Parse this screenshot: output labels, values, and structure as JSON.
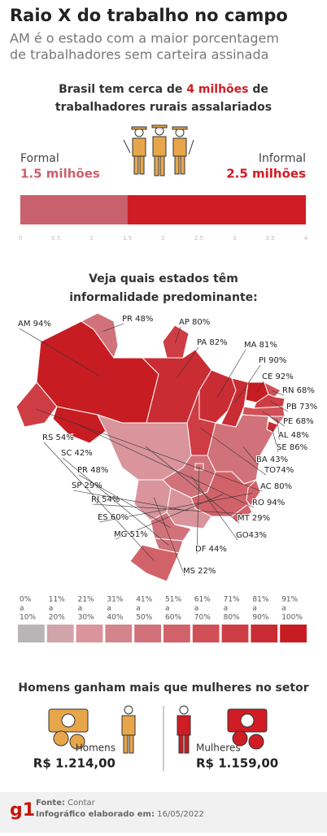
{
  "header": {
    "title": "Raio X do trabalho no campo",
    "subtitle_lines": [
      "AM é o estado com a maior porcentagem",
      "de trabalhadores sem carteira assinada"
    ]
  },
  "chart_data": {
    "type": "bar",
    "orientation": "horizontal",
    "stacked": true,
    "title_lines": [
      [
        "Brasil tem cerca de ",
        "4 milhões",
        " de"
      ],
      [
        "trabalhadores rurais assalariados"
      ]
    ],
    "series": [
      {
        "name": "Formal",
        "color": "#c9616c",
        "values": [
          1.5
        ],
        "value_labels": [
          "1.5 milhões"
        ]
      },
      {
        "name": "Informal",
        "color": "#d01c24",
        "values": [
          2.5
        ],
        "value_labels": [
          "2.5 milhões"
        ]
      }
    ],
    "xlim": [
      0,
      4
    ],
    "xticks": [
      0,
      0.5,
      1,
      1.5,
      2,
      2.5,
      3,
      3.5,
      4
    ]
  },
  "map": {
    "title_lines": [
      "Veja quais estados têm",
      "informalidade predominante:"
    ],
    "states": [
      {
        "name": "AM",
        "value": 94,
        "label": "AM 94%"
      },
      {
        "name": "PR",
        "value": 48,
        "label": "PR 48%"
      },
      {
        "name": "AP",
        "value": 80,
        "label": "AP 80%"
      },
      {
        "name": "PA",
        "value": 82,
        "label": "PA 82%"
      },
      {
        "name": "MA",
        "value": 81,
        "label": "MA 81%"
      },
      {
        "name": "PI",
        "value": 90,
        "label": "PI 90%"
      },
      {
        "name": "CE",
        "value": 92,
        "label": "CE 92%"
      },
      {
        "name": "RN",
        "value": 68,
        "label": "RN 68%"
      },
      {
        "name": "PB",
        "value": 73,
        "label": "PB 73%"
      },
      {
        "name": "PE",
        "value": 68,
        "label": "PE 68%"
      },
      {
        "name": "AL",
        "value": 48,
        "label": "AL 48%"
      },
      {
        "name": "SE",
        "value": 86,
        "label": "SE 86%"
      },
      {
        "name": "BA",
        "value": 43,
        "label": "BA 43%"
      },
      {
        "name": "TO",
        "value": 74,
        "label": "TO74%"
      },
      {
        "name": "AC",
        "value": 80,
        "label": "AC 80%"
      },
      {
        "name": "RO",
        "value": 94,
        "label": "RO 94%"
      },
      {
        "name": "MT",
        "value": 29,
        "label": "MT 29%"
      },
      {
        "name": "GO",
        "value": 43,
        "label": "GO43%"
      },
      {
        "name": "DF",
        "value": 44,
        "label": "DF 44%"
      },
      {
        "name": "MS",
        "value": 22,
        "label": "MS 22%"
      },
      {
        "name": "MG",
        "value": 51,
        "label": "MG 51%"
      },
      {
        "name": "ES",
        "value": 60,
        "label": "ES 60%"
      },
      {
        "name": "RJ",
        "value": 54,
        "label": "RJ 54%"
      },
      {
        "name": "SP",
        "value": 29,
        "label": "SP 29%"
      },
      {
        "name": "PR",
        "value": 48,
        "label": "PR 48%"
      },
      {
        "name": "SC",
        "value": 42,
        "label": "SC 42%"
      },
      {
        "name": "RS",
        "value": 54,
        "label": "RS 54%"
      }
    ],
    "legend_joiner": "a",
    "legend": [
      {
        "from": "0%",
        "to": "10%",
        "color": "#b9b4b5"
      },
      {
        "from": "11%",
        "to": "20%",
        "color": "#d0a4a9"
      },
      {
        "from": "21%",
        "to": "30%",
        "color": "#d9949c"
      },
      {
        "from": "31%",
        "to": "40%",
        "color": "#d4848b"
      },
      {
        "from": "41%",
        "to": "50%",
        "color": "#d1727a"
      },
      {
        "from": "51%",
        "to": "60%",
        "color": "#d2626a"
      },
      {
        "from": "61%",
        "to": "70%",
        "color": "#d15058"
      },
      {
        "from": "71%",
        "to": "80%",
        "color": "#cf3d44"
      },
      {
        "from": "81%",
        "to": "90%",
        "color": "#ca2c33"
      },
      {
        "from": "91%",
        "to": "100%",
        "color": "#c81c23"
      }
    ]
  },
  "salary": {
    "title": "Homens ganham mais que mulheres no setor",
    "items": [
      {
        "label": "Homens",
        "amount": "R$ 1.214,00"
      },
      {
        "label": "Mulheres",
        "amount": "R$ 1.159,00"
      }
    ]
  },
  "footer": {
    "logo": "g1",
    "source_label": "Fonte:",
    "source": "Contar",
    "date_label": "Infográfico elaborado em:",
    "date": "16/05/2022"
  }
}
